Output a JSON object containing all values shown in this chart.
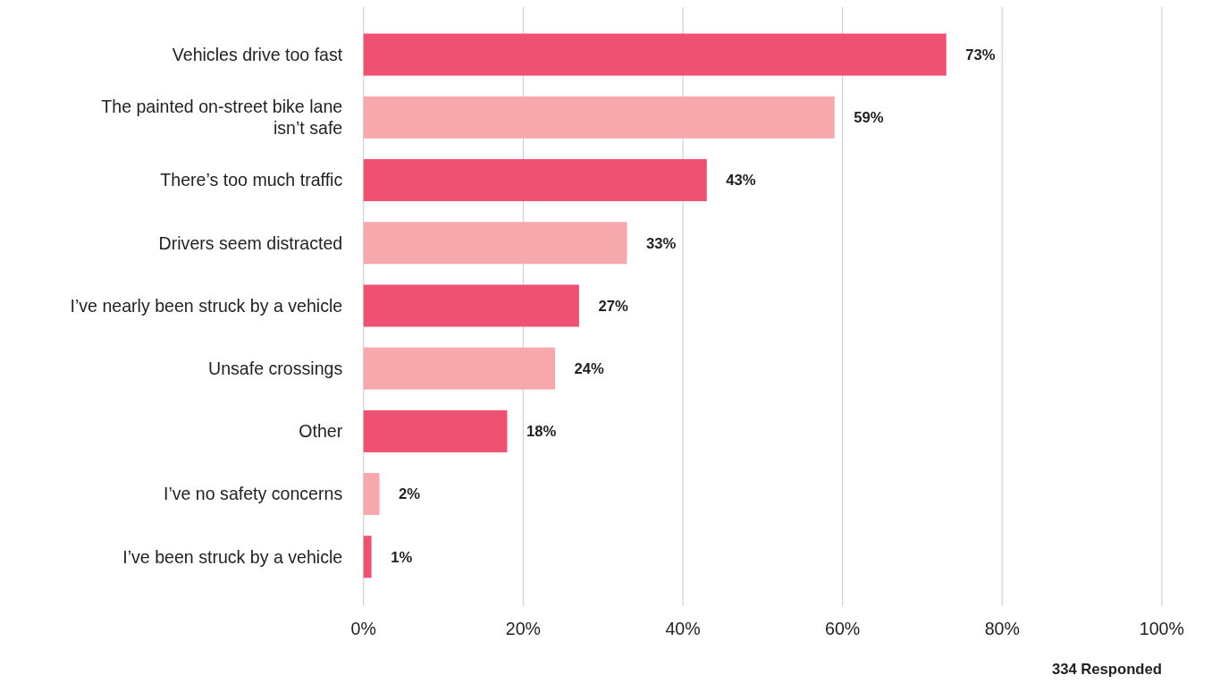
{
  "chart_data": {
    "type": "bar",
    "orientation": "horizontal",
    "categories": [
      "Vehicles drive too fast",
      "The painted on-street bike lane isn’t safe",
      "There’s too much traffic",
      "Drivers seem distracted",
      "I’ve nearly been struck by a vehicle",
      "Unsafe crossings",
      "Other",
      "I’ve no safety concerns",
      "I’ve been struck by a vehicle"
    ],
    "values": [
      73,
      59,
      43,
      33,
      27,
      24,
      18,
      2,
      1
    ],
    "colors": [
      "#ef5173",
      "#f6a8ad",
      "#ef5173",
      "#f6a8ad",
      "#ef5173",
      "#f6a8ad",
      "#ef5173",
      "#f6a8ad",
      "#ef5173"
    ],
    "value_labels": [
      "73%",
      "59%",
      "43%",
      "33%",
      "27%",
      "24%",
      "18%",
      "2%",
      "1%"
    ],
    "xlim": [
      0,
      100
    ],
    "xticks": [
      {
        "value": 0,
        "label": "0%"
      },
      {
        "value": 20,
        "label": "20%"
      },
      {
        "value": 40,
        "label": "40%"
      },
      {
        "value": 60,
        "label": "60%"
      },
      {
        "value": 80,
        "label": "80%"
      },
      {
        "value": 100,
        "label": "100%"
      }
    ],
    "grid": "x",
    "annotations": [
      "334 Responded"
    ]
  }
}
